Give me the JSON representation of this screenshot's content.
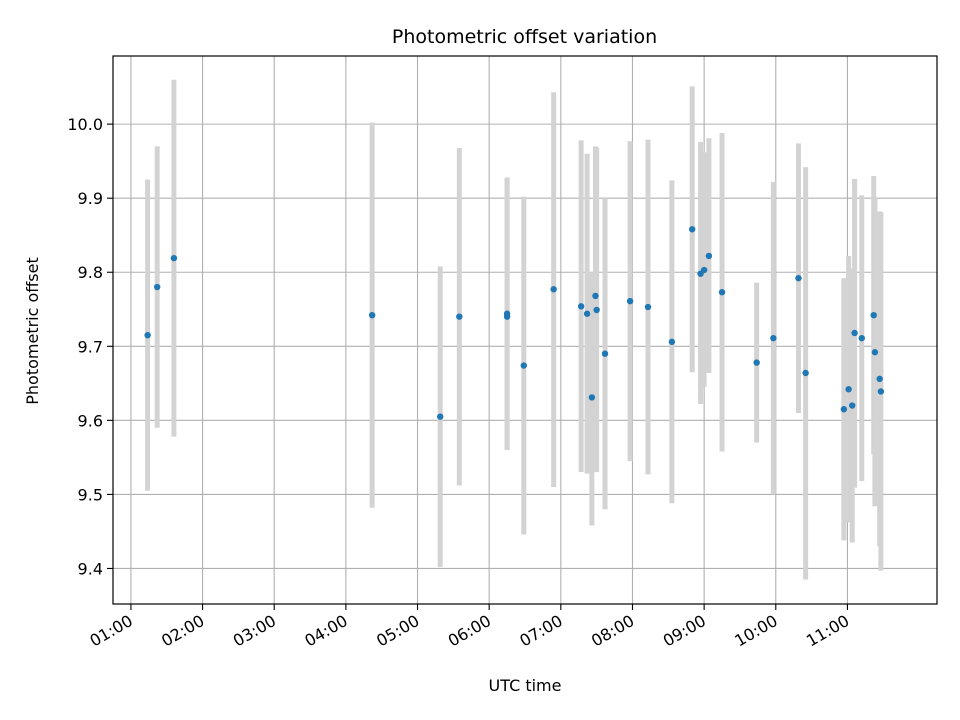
{
  "chart_data": {
    "type": "scatter",
    "title": "Photometric offset variation",
    "xlabel": "UTC time",
    "ylabel": "Photometric offset",
    "xlim": [
      "00:45",
      "12:15"
    ],
    "ylim": [
      9.352,
      10.092
    ],
    "x_ticks": [
      "01:00",
      "02:00",
      "03:00",
      "04:00",
      "05:00",
      "06:00",
      "07:00",
      "08:00",
      "09:00",
      "10:00",
      "11:00"
    ],
    "y_ticks": [
      "9.4",
      "9.5",
      "9.6",
      "9.7",
      "9.8",
      "9.9",
      "10.0"
    ],
    "grid": true,
    "colors": {
      "points": "#1f77b4",
      "error_bars": "#d3d3d3",
      "grid": "#b0b0b0"
    },
    "series": [
      {
        "points": [
          {
            "x": "01:14",
            "y": 9.715,
            "lo": 9.505,
            "hi": 9.925
          },
          {
            "x": "01:22",
            "y": 9.78,
            "lo": 9.59,
            "hi": 9.97
          },
          {
            "x": "01:36",
            "y": 9.819,
            "lo": 9.578,
            "hi": 10.06
          },
          {
            "x": "04:22",
            "y": 9.742,
            "lo": 9.482,
            "hi": 10.002
          },
          {
            "x": "05:19",
            "y": 9.605,
            "lo": 9.402,
            "hi": 9.808
          },
          {
            "x": "05:35",
            "y": 9.74,
            "lo": 9.512,
            "hi": 9.968
          },
          {
            "x": "06:15",
            "y": 9.744,
            "lo": 9.56,
            "hi": 9.928
          },
          {
            "x": "06:15",
            "y": 9.74,
            "lo": 9.56,
            "hi": 9.928
          },
          {
            "x": "06:29",
            "y": 9.674,
            "lo": 9.446,
            "hi": 9.902
          },
          {
            "x": "06:54",
            "y": 9.777,
            "lo": 9.51,
            "hi": 10.043
          },
          {
            "x": "07:17",
            "y": 9.754,
            "lo": 9.53,
            "hi": 9.978
          },
          {
            "x": "07:22",
            "y": 9.744,
            "lo": 9.528,
            "hi": 9.96
          },
          {
            "x": "07:26",
            "y": 9.631,
            "lo": 9.458,
            "hi": 9.8
          },
          {
            "x": "07:29",
            "y": 9.768,
            "lo": 9.566,
            "hi": 9.97
          },
          {
            "x": "07:30",
            "y": 9.749,
            "lo": 9.53,
            "hi": 9.968
          },
          {
            "x": "07:37",
            "y": 9.69,
            "lo": 9.48,
            "hi": 9.9
          },
          {
            "x": "07:58",
            "y": 9.761,
            "lo": 9.545,
            "hi": 9.977
          },
          {
            "x": "08:13",
            "y": 9.753,
            "lo": 9.527,
            "hi": 9.979
          },
          {
            "x": "08:33",
            "y": 9.706,
            "lo": 9.488,
            "hi": 9.924
          },
          {
            "x": "08:50",
            "y": 9.858,
            "lo": 9.665,
            "hi": 10.051
          },
          {
            "x": "08:57",
            "y": 9.798,
            "lo": 9.622,
            "hi": 9.976
          },
          {
            "x": "09:00",
            "y": 9.803,
            "lo": 9.645,
            "hi": 9.962
          },
          {
            "x": "09:04",
            "y": 9.822,
            "lo": 9.664,
            "hi": 9.981
          },
          {
            "x": "09:15",
            "y": 9.773,
            "lo": 9.558,
            "hi": 9.988
          },
          {
            "x": "09:44",
            "y": 9.678,
            "lo": 9.57,
            "hi": 9.786
          },
          {
            "x": "09:58",
            "y": 9.711,
            "lo": 9.5,
            "hi": 9.922
          },
          {
            "x": "10:19",
            "y": 9.792,
            "lo": 9.61,
            "hi": 9.974
          },
          {
            "x": "10:25",
            "y": 9.664,
            "lo": 9.385,
            "hi": 9.942
          },
          {
            "x": "10:57",
            "y": 9.615,
            "lo": 9.438,
            "hi": 9.792
          },
          {
            "x": "11:01",
            "y": 9.642,
            "lo": 9.462,
            "hi": 9.822
          },
          {
            "x": "11:04",
            "y": 9.62,
            "lo": 9.435,
            "hi": 9.805
          },
          {
            "x": "11:06",
            "y": 9.718,
            "lo": 9.509,
            "hi": 9.926
          },
          {
            "x": "11:12",
            "y": 9.711,
            "lo": 9.518,
            "hi": 9.904
          },
          {
            "x": "11:22",
            "y": 9.742,
            "lo": 9.554,
            "hi": 9.93
          },
          {
            "x": "11:23",
            "y": 9.692,
            "lo": 9.484,
            "hi": 9.9
          },
          {
            "x": "11:27",
            "y": 9.656,
            "lo": 9.43,
            "hi": 9.882
          },
          {
            "x": "11:28",
            "y": 9.639,
            "lo": 9.397,
            "hi": 9.881
          }
        ]
      }
    ]
  }
}
